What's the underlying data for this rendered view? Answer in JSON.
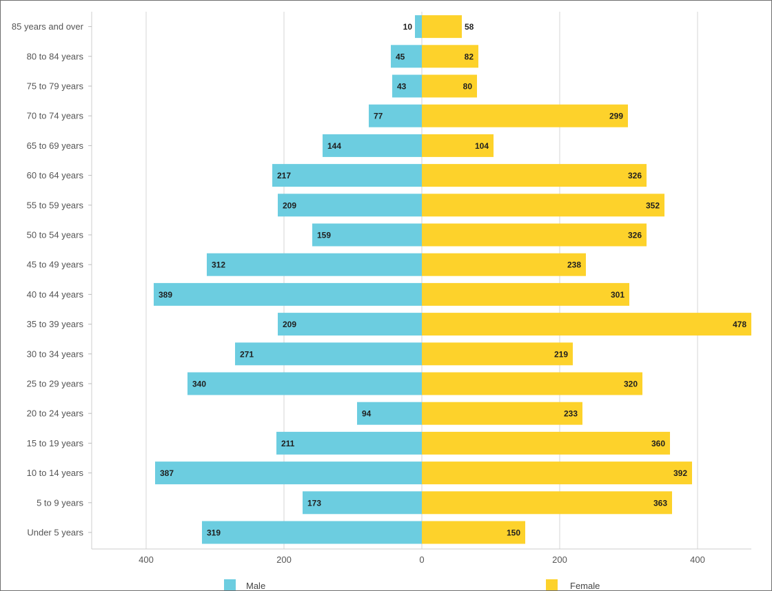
{
  "chart_data": {
    "type": "bar",
    "orientation": "horizontal-diverging",
    "categories": [
      "85 years and over",
      "80 to 84 years",
      "75 to 79 years",
      "70 to 74 years",
      "65 to 69 years",
      "60 to 64 years",
      "55 to 59 years",
      "50 to 54 years",
      "45 to 49 years",
      "40 to 44 years",
      "35 to 39 years",
      "30 to 34 years",
      "25 to 29 years",
      "20 to 24 years",
      "15 to 19 years",
      "10 to 14 years",
      "5 to 9 years",
      "Under 5 years"
    ],
    "series": [
      {
        "name": "Male",
        "color": "#6ccde0",
        "direction": "left",
        "values": [
          10,
          45,
          43,
          77,
          144,
          217,
          209,
          159,
          312,
          389,
          209,
          271,
          340,
          94,
          211,
          387,
          173,
          319
        ]
      },
      {
        "name": "Female",
        "color": "#fdd22b",
        "direction": "right",
        "values": [
          58,
          82,
          80,
          299,
          104,
          326,
          352,
          326,
          238,
          301,
          478,
          219,
          320,
          233,
          360,
          392,
          363,
          150
        ]
      }
    ],
    "xticks": [
      {
        "value": -400,
        "label": "400"
      },
      {
        "value": -200,
        "label": "200"
      },
      {
        "value": 0,
        "label": "0"
      },
      {
        "value": 200,
        "label": "200"
      },
      {
        "value": 400,
        "label": "400"
      }
    ],
    "xlim": [
      -478,
      478
    ],
    "grid": true,
    "legend": "bottom",
    "title": "",
    "xlabel": "",
    "ylabel": ""
  }
}
